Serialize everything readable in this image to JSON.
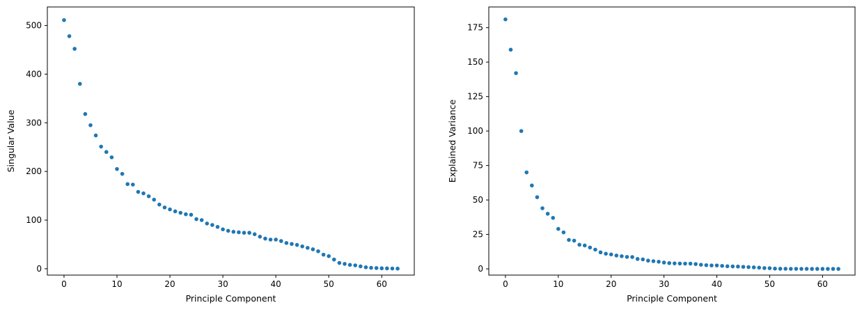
{
  "chart_data": [
    {
      "type": "scatter",
      "title": "",
      "xlabel": "Principle Component",
      "ylabel": "Singular Value",
      "xlim": [
        -3.15,
        66.15
      ],
      "ylim": [
        -13,
        538
      ],
      "xticks": [
        0,
        10,
        20,
        30,
        40,
        50,
        60
      ],
      "yticks": [
        0,
        100,
        200,
        300,
        400,
        500
      ],
      "grid": false,
      "color": "#1f77b4",
      "x": [
        0,
        1,
        2,
        3,
        4,
        5,
        6,
        7,
        8,
        9,
        10,
        11,
        12,
        13,
        14,
        15,
        16,
        17,
        18,
        19,
        20,
        21,
        22,
        23,
        24,
        25,
        26,
        27,
        28,
        29,
        30,
        31,
        32,
        33,
        34,
        35,
        36,
        37,
        38,
        39,
        40,
        41,
        42,
        43,
        44,
        45,
        46,
        47,
        48,
        49,
        50,
        51,
        52,
        53,
        54,
        55,
        56,
        57,
        58,
        59,
        60,
        61,
        62,
        63
      ],
      "y": [
        511,
        478,
        452,
        380,
        318,
        295,
        274,
        251,
        240,
        229,
        205,
        195,
        174,
        173,
        158,
        155,
        149,
        142,
        132,
        126,
        122,
        118,
        115,
        112,
        111,
        102,
        100,
        93,
        90,
        86,
        81,
        78,
        76,
        75,
        74,
        74,
        71,
        66,
        62,
        60,
        60,
        57,
        53,
        51,
        49,
        46,
        43,
        40,
        36,
        29,
        26,
        19,
        12,
        10,
        8,
        7,
        5,
        3,
        2,
        1.5,
        1,
        0.8,
        0.5,
        0.3
      ]
    },
    {
      "type": "scatter",
      "title": "",
      "xlabel": "Principle Component",
      "ylabel": "Explained Variance",
      "xlim": [
        -3.15,
        66.15
      ],
      "ylim": [
        -4.5,
        190
      ],
      "xticks": [
        0,
        10,
        20,
        30,
        40,
        50,
        60
      ],
      "yticks": [
        0,
        25,
        50,
        75,
        100,
        125,
        150,
        175
      ],
      "grid": false,
      "color": "#1f77b4",
      "x": [
        0,
        1,
        2,
        3,
        4,
        5,
        6,
        7,
        8,
        9,
        10,
        11,
        12,
        13,
        14,
        15,
        16,
        17,
        18,
        19,
        20,
        21,
        22,
        23,
        24,
        25,
        26,
        27,
        28,
        29,
        30,
        31,
        32,
        33,
        34,
        35,
        36,
        37,
        38,
        39,
        40,
        41,
        42,
        43,
        44,
        45,
        46,
        47,
        48,
        49,
        50,
        51,
        52,
        53,
        54,
        55,
        56,
        57,
        58,
        59,
        60,
        61,
        62,
        63
      ],
      "y": [
        181,
        159,
        142,
        100,
        70,
        60.5,
        52,
        44,
        40,
        37,
        29,
        26.5,
        21,
        20.5,
        17.5,
        17,
        15.5,
        14,
        12,
        11,
        10.5,
        9.7,
        9.2,
        8.7,
        8.6,
        7.2,
        6.9,
        6.0,
        5.6,
        5.2,
        4.6,
        4.2,
        4.0,
        3.9,
        3.8,
        3.8,
        3.5,
        3.0,
        2.7,
        2.5,
        2.5,
        2.2,
        1.9,
        1.8,
        1.7,
        1.5,
        1.3,
        1.1,
        0.9,
        0.6,
        0.5,
        0.2,
        0.1,
        0.07,
        0.05,
        0.04,
        0.02,
        0.01,
        0.005,
        0.003,
        0.002,
        0.001,
        0.0005,
        0.0002
      ]
    }
  ]
}
